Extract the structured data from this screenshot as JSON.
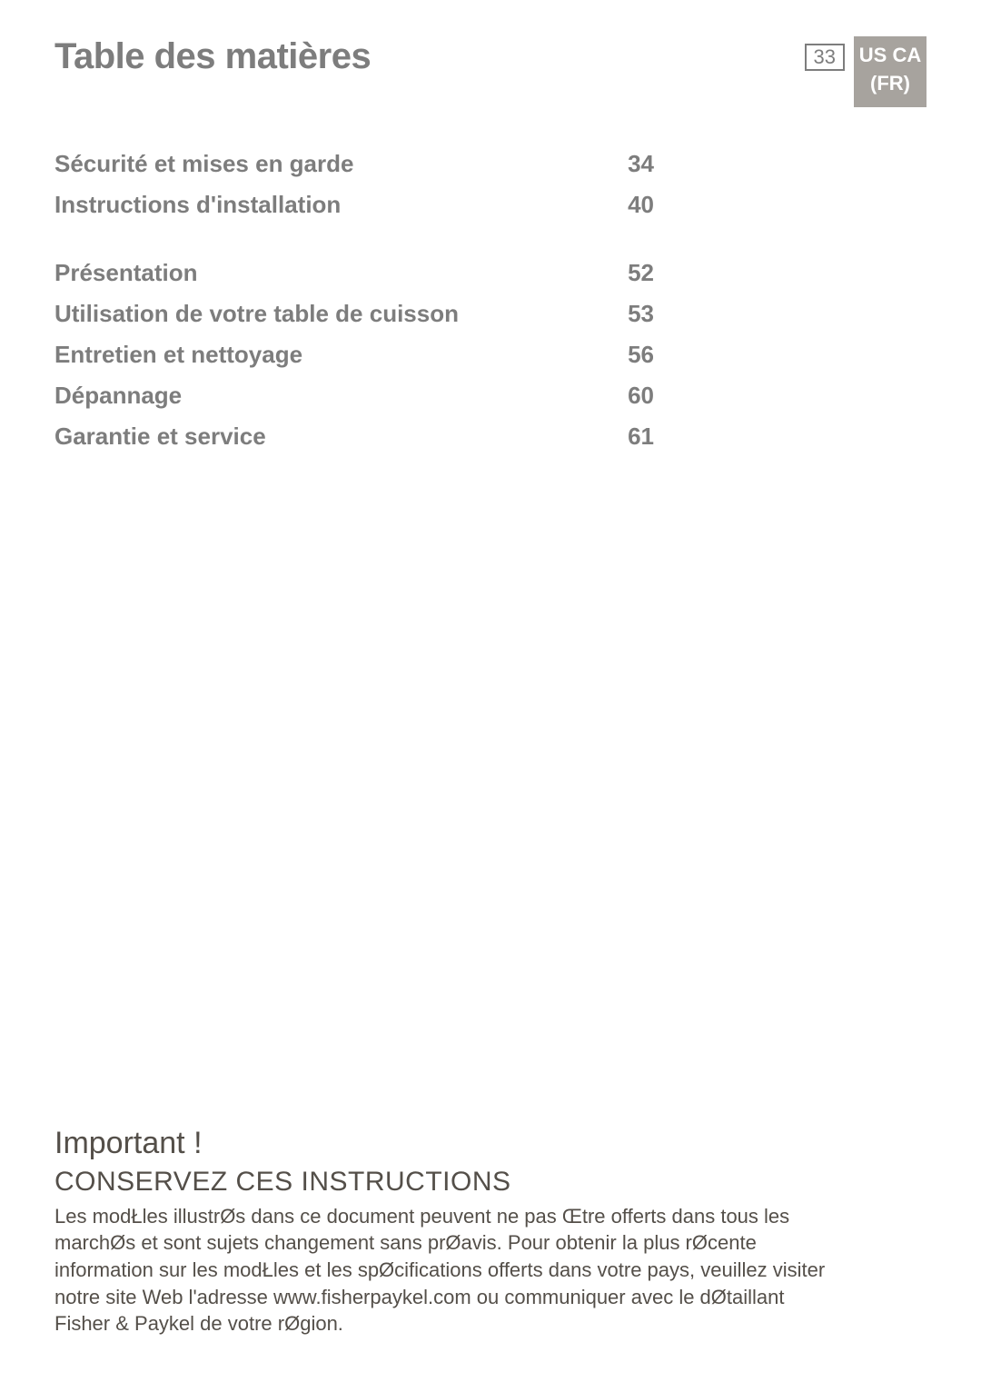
{
  "header": {
    "title": "Table des matières",
    "page_number": "33",
    "tab_lines": [
      "US CA",
      "(FR)"
    ]
  },
  "toc": {
    "groups": [
      [
        {
          "label": "Sécurité et mises en garde",
          "page": "34"
        },
        {
          "label": "Instructions d'installation",
          "page": "40"
        }
      ],
      [
        {
          "label": "Présentation",
          "page": "52"
        },
        {
          "label": "Utilisation de votre table de cuisson",
          "page": "53"
        },
        {
          "label": "Entretien et nettoyage",
          "page": "56"
        },
        {
          "label": "Dépannage",
          "page": "60"
        },
        {
          "label": "Garantie et service",
          "page": "61"
        }
      ]
    ]
  },
  "footer": {
    "important": "Important !",
    "keep": "CONSERVEZ CES INSTRUCTIONS",
    "body": "Les modŁles illustrØs dans ce document peuvent ne pas Œtre offerts dans tous les marchØs et sont sujets   changement sans prØavis. Pour obtenir la plus rØcente information sur les modŁles et les spØcifications offerts dans votre pays, veuillez visiter notre site Web   l'adresse www.fisherpaykel.com ou communiquer avec le dØtaillant Fisher & Paykel de votre rØgion."
  },
  "colors": {
    "gray_text": "#7d7d7d",
    "dark_text": "#544f49",
    "tab_bg": "#a7a39e",
    "tab_text": "#ffffff",
    "page_bg": "#ffffff"
  }
}
